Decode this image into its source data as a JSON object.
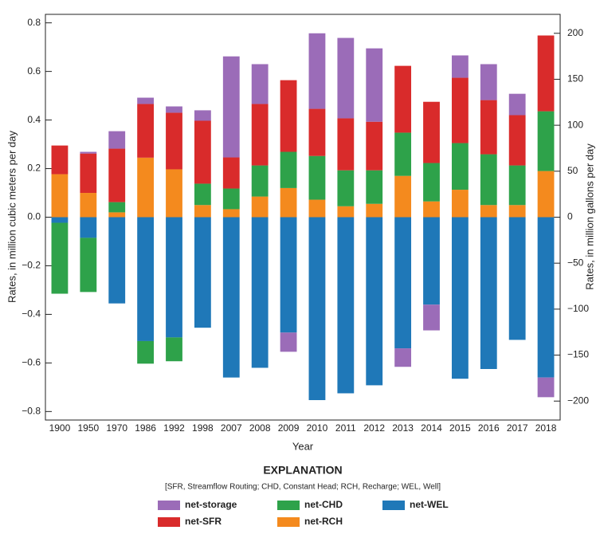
{
  "chart_data": {
    "type": "stacked-bar",
    "y_label": "Rates, in million cubic meters per day",
    "y2_label": "Rates, in million gallons per day",
    "x_label": "Year",
    "legend_title": "EXPLANATION",
    "legend_note": "[SFR, Streamflow Routing; CHD, Constant Head; RCH, Recharge; WEL, Well]",
    "categories": [
      "1900",
      "1950",
      "1970",
      "1986",
      "1992",
      "1998",
      "2007",
      "2008",
      "2009",
      "2010",
      "2011",
      "2012",
      "2013",
      "2014",
      "2015",
      "2016",
      "2017",
      "2018"
    ],
    "series": [
      {
        "name": "net-storage",
        "color": "#9b6cb8",
        "values": [
          0,
          0.007,
          0.072,
          0.026,
          0.026,
          0.043,
          0.416,
          0.164,
          -0.079,
          0.311,
          0.331,
          0.302,
          -0.076,
          -0.106,
          0.092,
          0.148,
          0.088,
          -0.081
        ]
      },
      {
        "name": "net-SFR",
        "color": "#d92b2b",
        "values": [
          0.118,
          0.162,
          0.22,
          0.221,
          0.233,
          0.259,
          0.128,
          0.253,
          0.295,
          0.194,
          0.214,
          0.2,
          0.275,
          0.252,
          0.269,
          0.223,
          0.207,
          0.312
        ]
      },
      {
        "name": "net-CHD",
        "color": "#2ea24a",
        "values": [
          -0.292,
          -0.223,
          0.042,
          -0.093,
          -0.098,
          0.088,
          0.085,
          0.128,
          0.149,
          0.18,
          0.148,
          0.138,
          0.178,
          0.158,
          0.192,
          0.209,
          0.163,
          0.246
        ]
      },
      {
        "name": "net-RCH",
        "color": "#f48a1e",
        "values": [
          0.177,
          0.1,
          0.02,
          0.245,
          0.197,
          0.05,
          0.033,
          0.085,
          0.12,
          0.072,
          0.045,
          0.055,
          0.17,
          0.065,
          0.113,
          0.05,
          0.05,
          0.19
        ]
      },
      {
        "name": "net-WEL",
        "color": "#1f78b8",
        "values": [
          -0.023,
          -0.085,
          -0.355,
          -0.51,
          -0.495,
          -0.455,
          -0.66,
          -0.62,
          -0.475,
          -0.753,
          -0.725,
          -0.692,
          -0.54,
          -0.36,
          -0.665,
          -0.625,
          -0.505,
          -0.66
        ]
      }
    ],
    "ylim": [
      -0.835,
      0.835
    ],
    "yticks": [
      {
        "value": -0.8,
        "label": "−0.8"
      },
      {
        "value": -0.6,
        "label": "−0.6"
      },
      {
        "value": -0.4,
        "label": "−0.4"
      },
      {
        "value": -0.2,
        "label": "−0.2"
      },
      {
        "value": 0,
        "label": "0.0"
      },
      0.2,
      0.4,
      0.6,
      0.8
    ],
    "y2lim": [
      -220.6,
      220.6
    ],
    "y2ticks": [
      {
        "value": -200,
        "label": "−200"
      },
      {
        "value": -150,
        "label": "−150"
      },
      {
        "value": -100,
        "label": "−100"
      },
      {
        "value": -50,
        "label": "−50"
      },
      0,
      50,
      100,
      150,
      200
    ]
  }
}
